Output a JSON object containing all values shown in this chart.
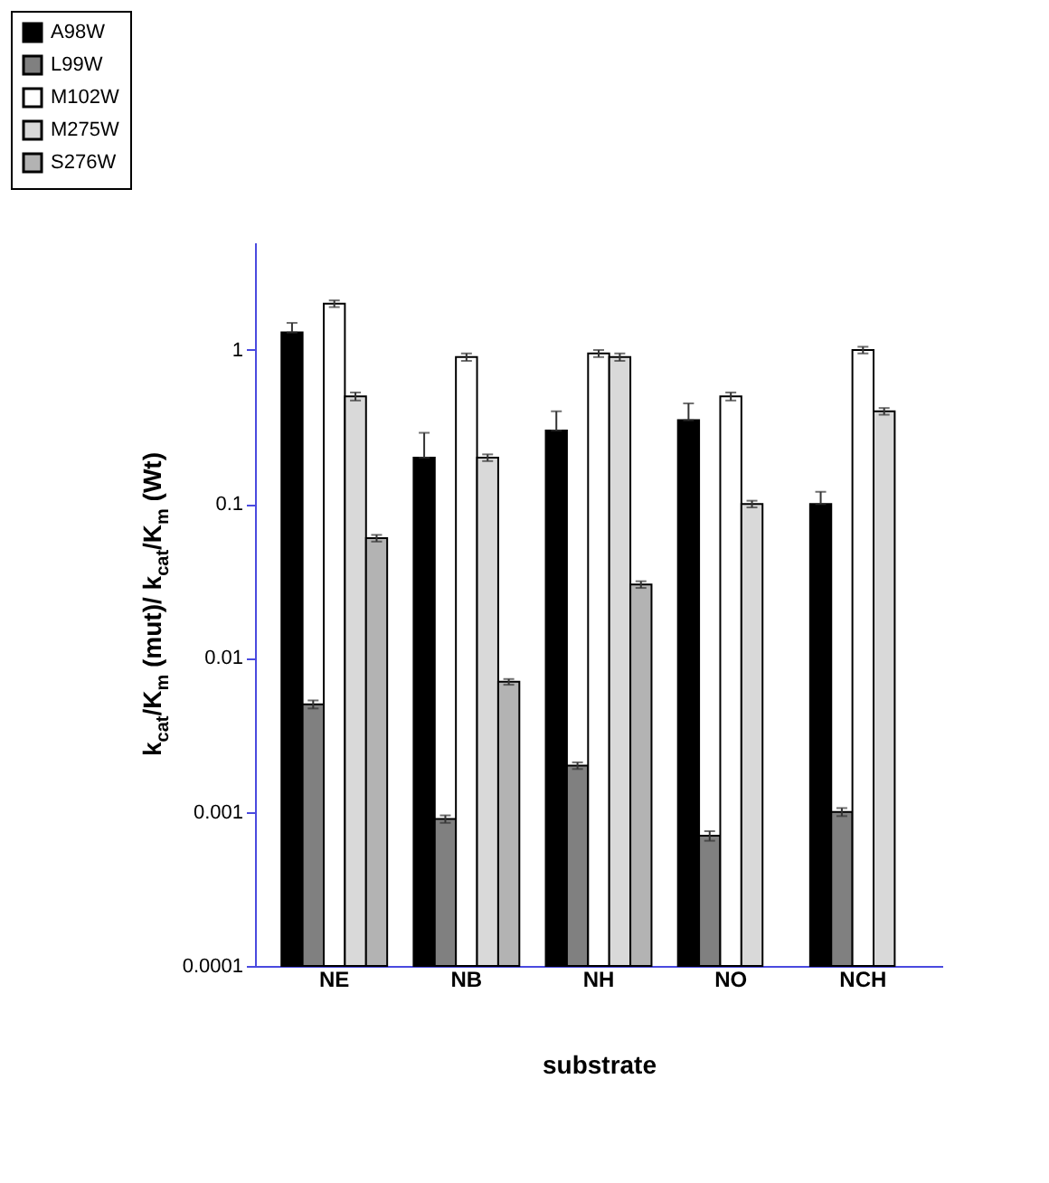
{
  "chart_data": {
    "type": "bar",
    "xlabel": "substrate",
    "ylabel": "k$_{cat}$/K$_{m}$ (mut)/ k$_{cat}$/K$_{m}$ (Wt)",
    "categories": [
      "NE",
      "NB",
      "NH",
      "NO",
      "NCH"
    ],
    "series": [
      {
        "name": "A98W",
        "color": "#000000",
        "values": [
          1.3,
          0.2,
          0.3,
          0.35,
          0.1
        ],
        "errors": [
          [
            1.3,
            1.5
          ],
          [
            0.2,
            0.29
          ],
          [
            0.3,
            0.4
          ],
          [
            0.35,
            0.45
          ],
          [
            0.1,
            0.12
          ]
        ]
      },
      {
        "name": "L99W",
        "color": "#808080",
        "values": [
          0.005,
          0.0009,
          0.002,
          0.0007,
          0.001
        ],
        "errors": [
          0.0003,
          5e-05,
          0.0001,
          5e-05,
          6e-05
        ]
      },
      {
        "name": "M102W",
        "color": "#ffffff",
        "values": [
          2.0,
          0.9,
          0.95,
          0.5,
          1.0
        ],
        "errors": [
          0.1,
          0.05,
          0.05,
          0.03,
          0.05
        ]
      },
      {
        "name": "M275W",
        "color": "#d9d9d9",
        "values": [
          0.5,
          0.2,
          0.9,
          0.1,
          0.4
        ],
        "errors": [
          0.03,
          0.01,
          0.05,
          0.005,
          0.02
        ]
      },
      {
        "name": "S276W",
        "color": "#b3b3b3",
        "values": [
          0.06,
          0.007,
          0.03,
          null,
          null
        ],
        "errors": [
          0.003,
          0.0003,
          0.0015,
          null,
          null
        ]
      }
    ],
    "log": "y",
    "ylim": [
      0.0001,
      5
    ],
    "yticks": [
      0.0001,
      0.001,
      0.01,
      0.1,
      1
    ],
    "grid": false,
    "legend": "top left"
  }
}
